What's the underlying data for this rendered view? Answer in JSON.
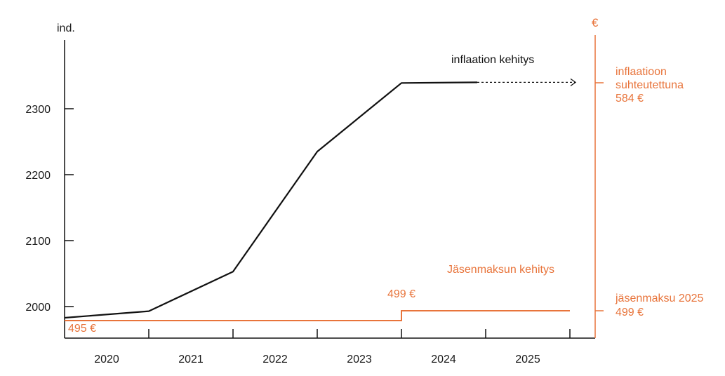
{
  "colors": {
    "inflation": "#111111",
    "fee": "#e8743b",
    "axis": "#111111"
  },
  "chart_data": {
    "type": "line",
    "title": "",
    "y_left_label": "ind.",
    "y_right_label": "€",
    "x_ticks": [
      "2020",
      "2021",
      "2022",
      "2023",
      "2024",
      "2025"
    ],
    "y_ticks": [
      2000,
      2100,
      2200,
      2300
    ],
    "ylim": [
      1950,
      2400
    ],
    "xlim": [
      2019.6,
      2025.9
    ],
    "series": [
      {
        "name": "inflaation kehitys",
        "style": "solid",
        "points": [
          {
            "x": 2019.6,
            "y": 1983
          },
          {
            "x": 2020.6,
            "y": 1993
          },
          {
            "x": 2021.6,
            "y": 2053
          },
          {
            "x": 2022.6,
            "y": 2235
          },
          {
            "x": 2023.6,
            "y": 2339
          },
          {
            "x": 2024.5,
            "y": 2340
          }
        ],
        "projection": [
          {
            "x": 2024.5,
            "y": 2340
          },
          {
            "x": 2025.85,
            "y": 2340
          }
        ]
      },
      {
        "name": "Jäsenmaksun kehitys",
        "style": "step",
        "points": [
          {
            "x": 2019.6,
            "y": 495
          },
          {
            "x": 2023.6,
            "y": 495
          },
          {
            "x": 2023.6,
            "y": 499
          },
          {
            "x": 2025.6,
            "y": 499
          }
        ]
      }
    ],
    "annotations": {
      "fee_start": "495 €",
      "fee_2024": "499 €",
      "right_inflation_line1": "inflaatioon",
      "right_inflation_line2": "suhteutettuna",
      "right_inflation_value": "584 €",
      "right_fee_line1": "jäsenmaksu 2025",
      "right_fee_value": "499 €"
    }
  }
}
